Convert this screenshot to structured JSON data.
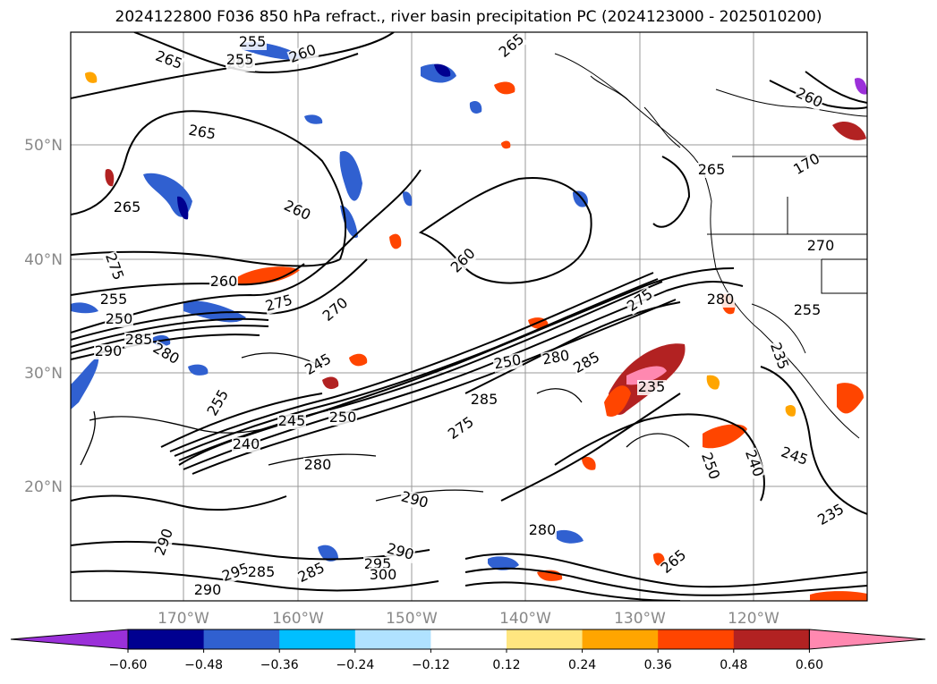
{
  "title": "2024122800 F036 850 hPa refract., river basin precipitation PC (2024123000 - 2025010200)",
  "map": {
    "lat_labels": [
      "50°N",
      "40°N",
      "30°N",
      "20°N"
    ],
    "lon_labels": [
      "170°W",
      "160°W",
      "150°W",
      "140°W",
      "130°W",
      "120°W"
    ],
    "contour_labels": [
      "255",
      "265",
      "255",
      "260",
      "265",
      "265",
      "260",
      "265",
      "265",
      "260",
      "275",
      "255",
      "250",
      "285",
      "280",
      "290",
      "260",
      "275",
      "270",
      "245",
      "250",
      "245",
      "255",
      "240",
      "260",
      "250",
      "280",
      "285",
      "275",
      "280",
      "235",
      "255",
      "235",
      "275",
      "285",
      "280",
      "290",
      "295",
      "300",
      "285",
      "290",
      "280",
      "265",
      "250",
      "240",
      "245",
      "235",
      "270",
      "170",
      "265",
      "290",
      "295",
      "285",
      "290"
    ]
  },
  "colorbar": {
    "colors": [
      "#9b30d9",
      "#000090",
      "#3060d0",
      "#00bfff",
      "#b0e2ff",
      "#ffffff",
      "#ffe680",
      "#ffa500",
      "#ff4500",
      "#b22222",
      "#ff88b0"
    ],
    "ticks": [
      "−0.60",
      "−0.48",
      "−0.36",
      "−0.24",
      "−0.12",
      "0.12",
      "0.24",
      "0.36",
      "0.48",
      "0.60"
    ]
  },
  "precip_colors": {
    "neg_strong": "#000090",
    "neg_mid": "#3060d0",
    "neg_light": "#00bfff",
    "pos_light": "#ffa500",
    "pos_mid": "#ff4500",
    "pos_strong": "#b22222",
    "pos_peak": "#ff88b0"
  }
}
